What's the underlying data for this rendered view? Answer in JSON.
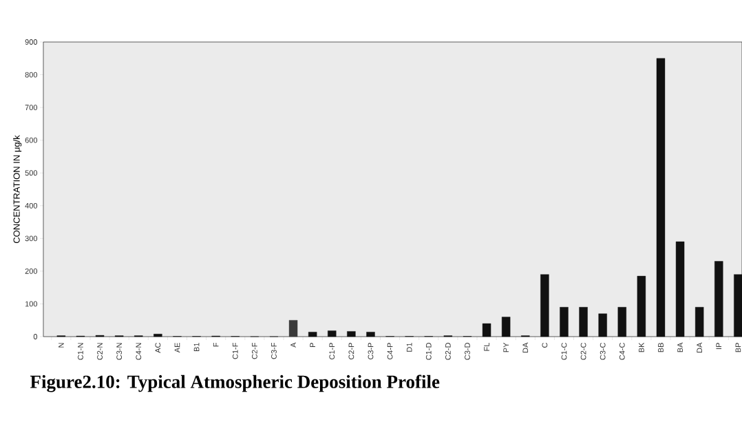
{
  "chart_data": {
    "type": "bar",
    "title": "Figure2.10: Typical Atmospheric Deposition Profile",
    "ylabel": "CONCENTRATION IN μg/k",
    "categories": [
      "N",
      "C1-N",
      "C2-N",
      "C3-N",
      "C4-N",
      "AC",
      "AE",
      "B1",
      "F",
      "C1-F",
      "C2-F",
      "C3-F",
      "A",
      "P",
      "C1-P",
      "C2-P",
      "C3-P",
      "C4-P",
      "D1",
      "C1-D",
      "C2-D",
      "C3-D",
      "FL",
      "PY",
      "DA",
      "C",
      "C1-C",
      "C2-C",
      "C3-C",
      "C4-C",
      "BK",
      "BB",
      "BA",
      "DA",
      "IP",
      "BP"
    ],
    "values": [
      3,
      2,
      4,
      3,
      3,
      8,
      1,
      1,
      2,
      1,
      0,
      0,
      50,
      14,
      18,
      16,
      14,
      1,
      1,
      1,
      3,
      1,
      40,
      60,
      3,
      190,
      90,
      90,
      70,
      90,
      185,
      850,
      290,
      90,
      230,
      190
    ],
    "colors": [
      "#111111",
      "#111111",
      "#111111",
      "#111111",
      "#111111",
      "#111111",
      "#111111",
      "#111111",
      "#111111",
      "#111111",
      "#111111",
      "#111111",
      "#3a3a3a",
      "#111111",
      "#111111",
      "#111111",
      "#111111",
      "#111111",
      "#111111",
      "#111111",
      "#111111",
      "#111111",
      "#111111",
      "#111111",
      "#111111",
      "#111111",
      "#111111",
      "#111111",
      "#111111",
      "#111111",
      "#111111",
      "#111111",
      "#111111",
      "#111111",
      "#111111",
      "#111111"
    ],
    "ylim": [
      0,
      900
    ],
    "yticks": [
      0,
      100,
      200,
      300,
      400,
      500,
      600,
      700,
      800,
      900
    ]
  }
}
